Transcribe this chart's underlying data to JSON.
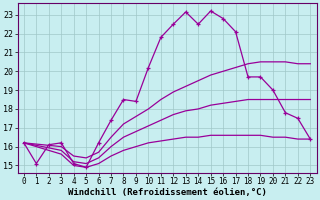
{
  "background_color": "#c8eef0",
  "plot_bg_color": "#c8eef0",
  "grid_color": "#a0c8c8",
  "line_color": "#990099",
  "xlabel": "Windchill (Refroidissement éolien,°C)",
  "xlabel_fontsize": 6.5,
  "tick_fontsize": 6,
  "ytick_labels": [
    "15",
    "16",
    "17",
    "18",
    "19",
    "20",
    "21",
    "22",
    "23"
  ],
  "xtick_labels": [
    "0",
    "1",
    "2",
    "3",
    "4",
    "5",
    "6",
    "7",
    "8",
    "9",
    "10",
    "11",
    "12",
    "13",
    "14",
    "15",
    "16",
    "17",
    "18",
    "19",
    "20",
    "21",
    "22",
    "23"
  ],
  "xlim": [
    -0.5,
    23.5
  ],
  "ylim": [
    14.6,
    23.6
  ],
  "yticks": [
    15,
    16,
    17,
    18,
    19,
    20,
    21,
    22,
    23
  ],
  "line1_x": [
    0,
    1,
    2,
    3,
    4,
    5,
    6,
    7,
    8,
    9,
    10,
    11,
    12,
    13,
    14,
    15,
    16,
    17,
    18,
    19,
    20,
    21,
    22,
    23
  ],
  "line1_y": [
    16.2,
    15.1,
    16.1,
    16.2,
    15.1,
    14.9,
    16.2,
    17.4,
    18.5,
    18.4,
    20.2,
    21.8,
    22.5,
    23.15,
    22.5,
    23.2,
    22.8,
    22.1,
    19.7,
    19.7,
    19.0,
    17.8,
    17.5,
    16.4
  ],
  "line2_x": [
    0,
    3,
    4,
    5,
    6,
    7,
    8,
    9,
    10,
    11,
    12,
    13,
    14,
    15,
    16,
    17,
    18,
    19,
    20,
    21,
    22,
    23
  ],
  "line2_y": [
    16.2,
    16.0,
    15.5,
    15.4,
    15.7,
    16.5,
    17.2,
    17.6,
    18.0,
    18.5,
    18.9,
    19.2,
    19.5,
    19.8,
    20.0,
    20.2,
    20.4,
    20.5,
    20.5,
    20.5,
    20.4,
    20.4
  ],
  "line3_x": [
    0,
    3,
    4,
    5,
    6,
    7,
    8,
    9,
    10,
    11,
    12,
    13,
    14,
    15,
    16,
    17,
    18,
    19,
    20,
    21,
    22,
    23
  ],
  "line3_y": [
    16.2,
    15.8,
    15.2,
    15.1,
    15.4,
    16.0,
    16.5,
    16.8,
    17.1,
    17.4,
    17.7,
    17.9,
    18.0,
    18.2,
    18.3,
    18.4,
    18.5,
    18.5,
    18.5,
    18.5,
    18.5,
    18.5
  ],
  "line4_x": [
    0,
    3,
    4,
    5,
    6,
    7,
    8,
    9,
    10,
    11,
    12,
    13,
    14,
    15,
    16,
    17,
    18,
    19,
    20,
    21,
    22,
    23
  ],
  "line4_y": [
    16.2,
    15.6,
    15.0,
    14.9,
    15.1,
    15.5,
    15.8,
    16.0,
    16.2,
    16.3,
    16.4,
    16.5,
    16.5,
    16.6,
    16.6,
    16.6,
    16.6,
    16.6,
    16.5,
    16.5,
    16.4,
    16.4
  ]
}
